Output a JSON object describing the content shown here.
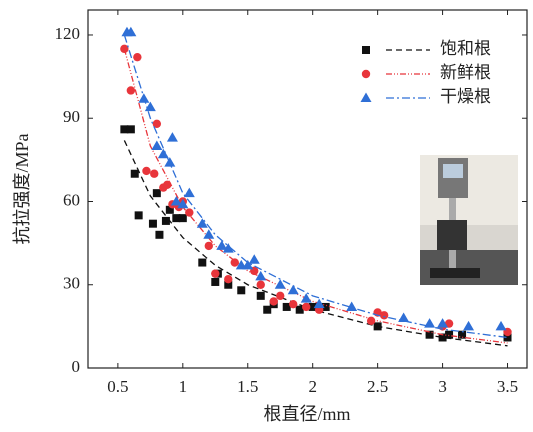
{
  "chart_data": {
    "type": "scatter",
    "x_label": "根直径/mm",
    "y_label": "抗拉强度/MPa",
    "xlim": [
      0.27,
      3.65
    ],
    "ylim": [
      0,
      129
    ],
    "xticks": [
      0.5,
      1,
      1.5,
      2,
      2.5,
      3,
      3.5
    ],
    "yticks": [
      0,
      30,
      60,
      90,
      120
    ],
    "legend": "upper-right",
    "series": [
      {
        "name": "饱和根",
        "color": "#111111",
        "marker": "square",
        "dash": "6,4",
        "x": [
          0.55,
          0.6,
          0.63,
          0.66,
          0.77,
          0.8,
          0.82,
          0.87,
          0.9,
          0.95,
          1,
          1.15,
          1.25,
          1.27,
          1.35,
          1.45,
          1.6,
          1.65,
          1.7,
          1.8,
          1.9,
          2,
          2.1,
          2.5,
          2.9,
          3,
          3.05,
          3.15,
          3.5
        ],
        "values": [
          86,
          86,
          70,
          55,
          52,
          63,
          48,
          53,
          57,
          54,
          54,
          38,
          31,
          34,
          30,
          28,
          26,
          21,
          23,
          22,
          21,
          22,
          22,
          15,
          12,
          11,
          12,
          12,
          11
        ],
        "fit_x": [
          0.55,
          0.75,
          1,
          1.25,
          1.5,
          2,
          2.5,
          3,
          3.5
        ],
        "fit_values": [
          82,
          62,
          47,
          37,
          30,
          21,
          15,
          11,
          8
        ]
      },
      {
        "name": "新鲜根",
        "color": "#e8353b",
        "marker": "circle",
        "dash": "6,2,1,2,1,2",
        "x": [
          0.55,
          0.6,
          0.65,
          0.72,
          0.78,
          0.8,
          0.85,
          0.88,
          0.92,
          0.97,
          1,
          1.05,
          1.2,
          1.25,
          1.35,
          1.4,
          1.55,
          1.6,
          1.7,
          1.75,
          1.85,
          1.95,
          2.05,
          2.45,
          2.5,
          2.55,
          3,
          3.05,
          3.5
        ],
        "values": [
          115,
          100,
          112,
          71,
          70,
          88,
          65,
          66,
          59,
          58,
          60,
          56,
          44,
          34,
          32,
          38,
          35,
          30,
          24,
          26,
          23,
          22,
          21,
          17,
          20,
          19,
          15,
          16,
          13
        ],
        "fit_x": [
          0.55,
          0.75,
          1,
          1.25,
          1.5,
          2,
          2.5,
          3,
          3.5
        ],
        "fit_values": [
          115,
          80,
          58,
          44,
          35,
          24,
          17,
          12,
          9
        ]
      },
      {
        "name": "干燥根",
        "color": "#2f6fd6",
        "marker": "triangle",
        "dash": "8,3,2,3",
        "x": [
          0.57,
          0.6,
          0.7,
          0.75,
          0.8,
          0.85,
          0.9,
          0.92,
          0.95,
          1,
          1.05,
          1.15,
          1.2,
          1.3,
          1.35,
          1.45,
          1.5,
          1.55,
          1.6,
          1.75,
          1.85,
          1.95,
          2.05,
          2.3,
          2.7,
          2.9,
          3,
          3.2,
          3.45
        ],
        "values": [
          121,
          121,
          97,
          94,
          80,
          77,
          74,
          83,
          60,
          59,
          63,
          52,
          48,
          44,
          43,
          37,
          37,
          39,
          33,
          30,
          28,
          25,
          23,
          22,
          18,
          16,
          16,
          15,
          15
        ],
        "fit_x": [
          0.55,
          0.75,
          1,
          1.25,
          1.5,
          2,
          2.5,
          3,
          3.5
        ],
        "fit_values": [
          120,
          90,
          63,
          48,
          38,
          26,
          19,
          14,
          11
        ]
      }
    ]
  }
}
